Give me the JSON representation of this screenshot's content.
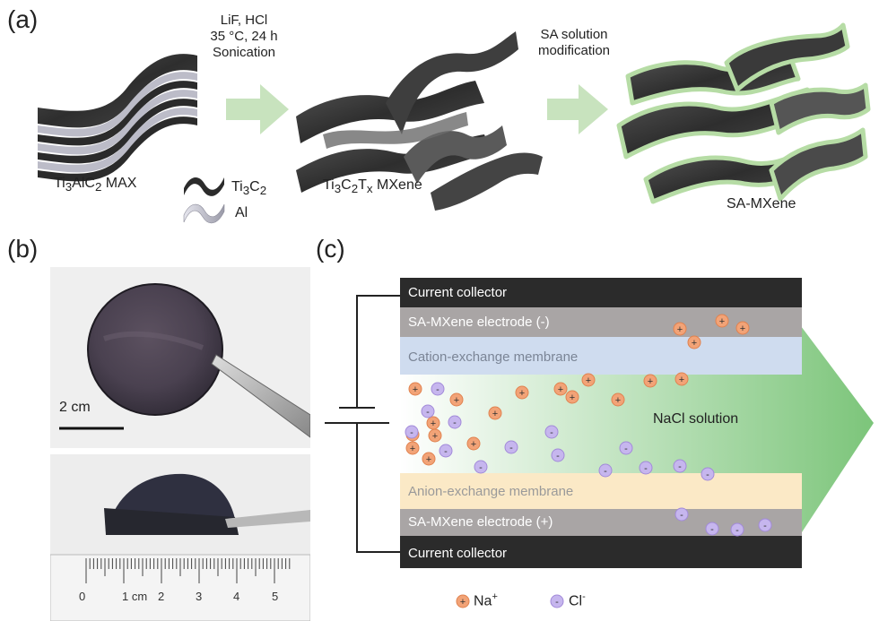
{
  "panels": {
    "a": "(a)",
    "b": "(b)",
    "c": "(c)"
  },
  "panel_a": {
    "step1_lines": [
      "LiF, HCl",
      "35 °C, 24 h",
      "Sonication"
    ],
    "step2_lines": [
      "SA solution",
      "modification"
    ],
    "max_label": {
      "pre": "Ti",
      "s1": "3",
      "mid": "AlC",
      "s2": "2",
      "post": " MAX"
    },
    "mxene_label": {
      "pre": "Ti",
      "s1": "3",
      "mid": "C",
      "s2": "2",
      "t": "T",
      "s3": "x",
      "post": " MXene"
    },
    "legend_ti3c2": {
      "pre": "Ti",
      "s1": "3",
      "mid": "C",
      "s2": "2"
    },
    "legend_al": "Al",
    "sa_mxene_label": "SA-MXene",
    "colors": {
      "arrow": "#c8e3be",
      "sheet": "#3a3a3a",
      "sa_outline": "#b6dca5"
    }
  },
  "panel_b": {
    "scale_label": "2 cm",
    "ruler_ticks": [
      "0",
      "1 cm",
      "2",
      "3",
      "4",
      "5"
    ]
  },
  "panel_c": {
    "layers": {
      "current_collector_top": "Current collector",
      "electrode_neg": "SA-MXene electrode (-)",
      "cation_membrane": "Cation-exchange membrane",
      "solution": "NaCl solution",
      "anion_membrane": "Anion-exchange membrane",
      "electrode_pos": "SA-MXene electrode (+)",
      "current_collector_bottom": "Current collector"
    },
    "legend": {
      "na": "Na",
      "na_sup": "+",
      "cl": "Cl",
      "cl_sup": "-"
    },
    "ion_symbols": {
      "cation": "+",
      "anion": "-"
    },
    "colors": {
      "collector": "#2b2b2b",
      "electrode": "#a9a5a5",
      "cation_membrane": "#cfdcef",
      "anion_membrane": "#fbe9c6",
      "solution_arrow": "#7cc57a",
      "na_ion": "#f2a377",
      "cl_ion": "#c6b6ee"
    }
  }
}
